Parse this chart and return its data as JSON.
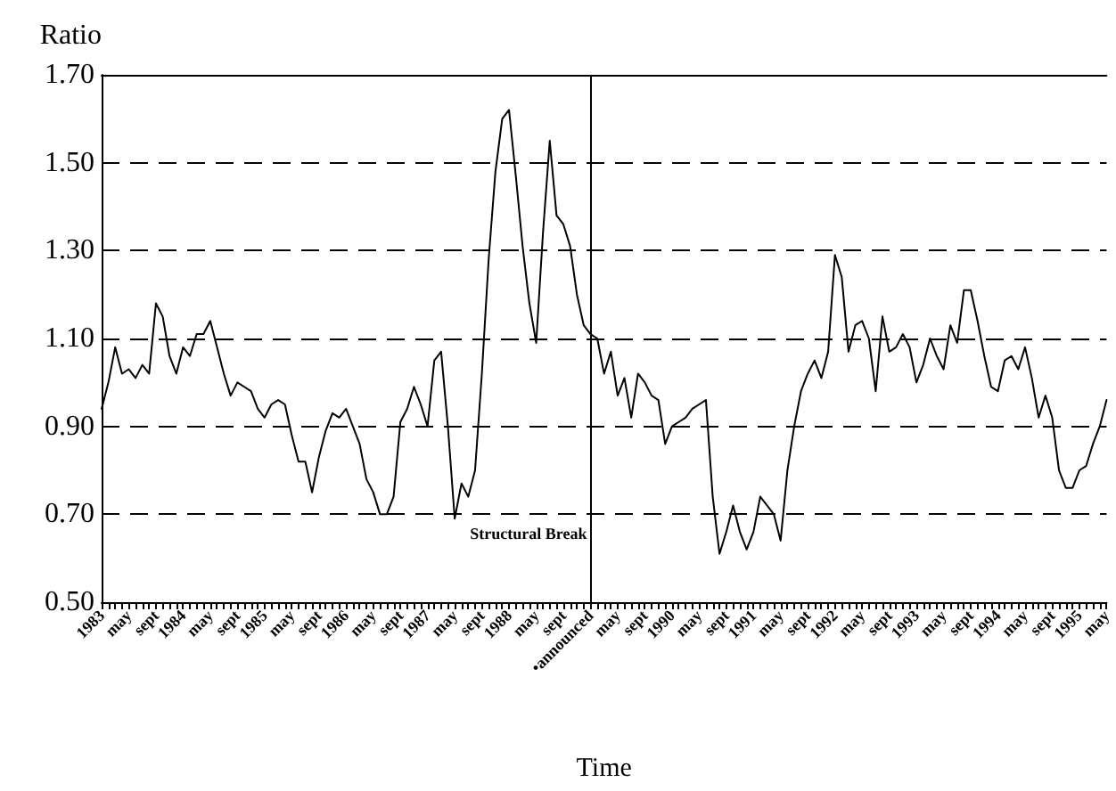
{
  "chart_data": {
    "type": "line",
    "xlabel": "Time",
    "ylabel": "Ratio",
    "categories": [
      "1983",
      null,
      null,
      null,
      "may",
      null,
      null,
      null,
      "sept",
      null,
      null,
      null,
      "1984",
      null,
      null,
      null,
      "may",
      null,
      null,
      null,
      "sept",
      null,
      null,
      null,
      "1985",
      null,
      null,
      null,
      "may",
      null,
      null,
      null,
      "sept",
      null,
      null,
      null,
      "1986",
      null,
      null,
      null,
      "may",
      null,
      null,
      null,
      "sept",
      null,
      null,
      null,
      "1987",
      null,
      null,
      null,
      "may",
      null,
      null,
      null,
      "sept",
      null,
      null,
      null,
      "1988",
      null,
      null,
      null,
      "may",
      null,
      null,
      null,
      "sept",
      null,
      null,
      null,
      "•announced",
      null,
      null,
      null,
      "may",
      null,
      null,
      null,
      "sept",
      null,
      null,
      null,
      "1990",
      null,
      null,
      null,
      "may",
      null,
      null,
      null,
      "sept",
      null,
      null,
      null,
      "1991",
      null,
      null,
      null,
      "may",
      null,
      null,
      null,
      "sept",
      null,
      null,
      null,
      "1992",
      null,
      null,
      null,
      "may",
      null,
      null,
      null,
      "sept",
      null,
      null,
      null,
      "1993",
      null,
      null,
      null,
      "may",
      null,
      null,
      null,
      "sept",
      null,
      null,
      null,
      "1994",
      null,
      null,
      null,
      "may",
      null,
      null,
      null,
      "sept",
      null,
      null,
      null,
      "1995",
      null,
      null,
      null,
      "may"
    ],
    "series": [
      {
        "color": "#000000",
        "values": [
          0.94,
          1.0,
          1.08,
          1.02,
          1.03,
          1.01,
          1.04,
          1.02,
          1.18,
          1.15,
          1.06,
          1.02,
          1.08,
          1.06,
          1.11,
          1.11,
          1.14,
          1.08,
          1.02,
          0.97,
          1.0,
          0.99,
          0.98,
          0.94,
          0.92,
          0.95,
          0.96,
          0.95,
          0.88,
          0.82,
          0.82,
          0.75,
          0.83,
          0.89,
          0.93,
          0.92,
          0.94,
          0.9,
          0.86,
          0.78,
          0.75,
          0.7,
          0.7,
          0.74,
          0.91,
          0.94,
          0.99,
          0.95,
          0.9,
          1.05,
          1.07,
          0.9,
          0.69,
          0.77,
          0.74,
          0.8,
          1.02,
          1.28,
          1.48,
          1.6,
          1.62,
          1.47,
          1.31,
          1.18,
          1.09,
          1.34,
          1.55,
          1.38,
          1.36,
          1.31,
          1.2,
          1.13,
          1.11,
          1.1,
          1.02,
          1.07,
          0.97,
          1.01,
          0.92,
          1.02,
          1.0,
          0.97,
          0.96,
          0.86,
          0.9,
          0.91,
          0.92,
          0.94,
          0.95,
          0.96,
          0.74,
          0.61,
          0.66,
          0.72,
          0.66,
          0.62,
          0.66,
          0.74,
          0.72,
          0.7,
          0.64,
          0.8,
          0.9,
          0.98,
          1.02,
          1.05,
          1.01,
          1.07,
          1.29,
          1.24,
          1.07,
          1.13,
          1.14,
          1.1,
          0.98,
          1.15,
          1.07,
          1.08,
          1.11,
          1.08,
          1.0,
          1.04,
          1.1,
          1.06,
          1.03,
          1.13,
          1.09,
          1.21,
          1.21,
          1.14,
          1.06,
          0.99,
          0.98,
          1.05,
          1.06,
          1.03,
          1.08,
          1.01,
          0.92,
          0.97,
          0.92,
          0.8,
          0.76,
          0.76,
          0.8,
          0.81,
          0.86,
          0.9,
          0.96
        ]
      }
    ],
    "ylim": [
      0.5,
      1.7
    ],
    "yticks": [
      {
        "value": 0.5,
        "label": "0.50"
      },
      {
        "value": 0.7,
        "label": "0.70"
      },
      {
        "value": 0.9,
        "label": "0.90"
      },
      {
        "value": 1.1,
        "label": "1.10"
      },
      {
        "value": 1.3,
        "label": "1.30"
      },
      {
        "value": 1.5,
        "label": "1.50"
      },
      {
        "value": 1.7,
        "label": "1.70"
      }
    ],
    "grid": "y",
    "marker": "none",
    "line_style": "solid",
    "ref_lines": [
      {
        "axis": "x",
        "value": "•announced",
        "label": "Structural Break",
        "color": "#000000"
      }
    ]
  }
}
